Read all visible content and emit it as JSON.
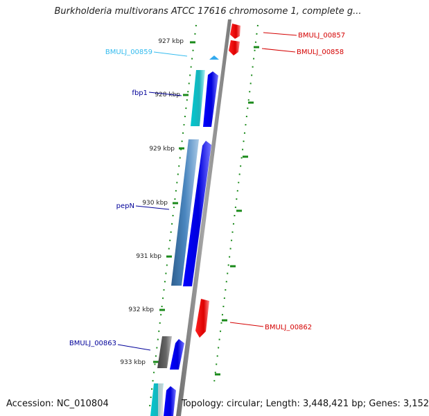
{
  "title": "Burkholderia multivorans ATCC 17616 chromosome 1, complete g...",
  "accession": "Accession: NC_010804",
  "stats": "Topology: circular; Length: 3,448,421 bp; Genes: 3,152",
  "ticks": [
    "927 kbp",
    "928 kbp",
    "929 kbp",
    "930 kbp",
    "931 kbp",
    "932 kbp",
    "933 kbp"
  ],
  "genes": [
    {
      "id": "g857",
      "label": "BMULJ_00857",
      "color": "#d40000"
    },
    {
      "id": "g858",
      "label": "BMULJ_00858",
      "color": "#d40000"
    },
    {
      "id": "g859",
      "label": "BMULJ_00859",
      "color": "#33bbee"
    },
    {
      "id": "fbp1",
      "label": "fbp1",
      "color": "#000099"
    },
    {
      "id": "pepN",
      "label": "pepN",
      "color": "#000099"
    },
    {
      "id": "g862",
      "label": "BMULJ_00862",
      "color": "#d40000"
    },
    {
      "id": "g863",
      "label": "BMULJ_00863",
      "color": "#000099"
    }
  ],
  "colors": {
    "backbone": "#8c8c8c",
    "forward_cds": "#0000ee",
    "reverse_cds": "#ee1111",
    "tick": "#1a8a1a",
    "cyan_feature": "#19c2c8",
    "steel_feature": "#3d78b0",
    "gray_feature": "#555555"
  }
}
